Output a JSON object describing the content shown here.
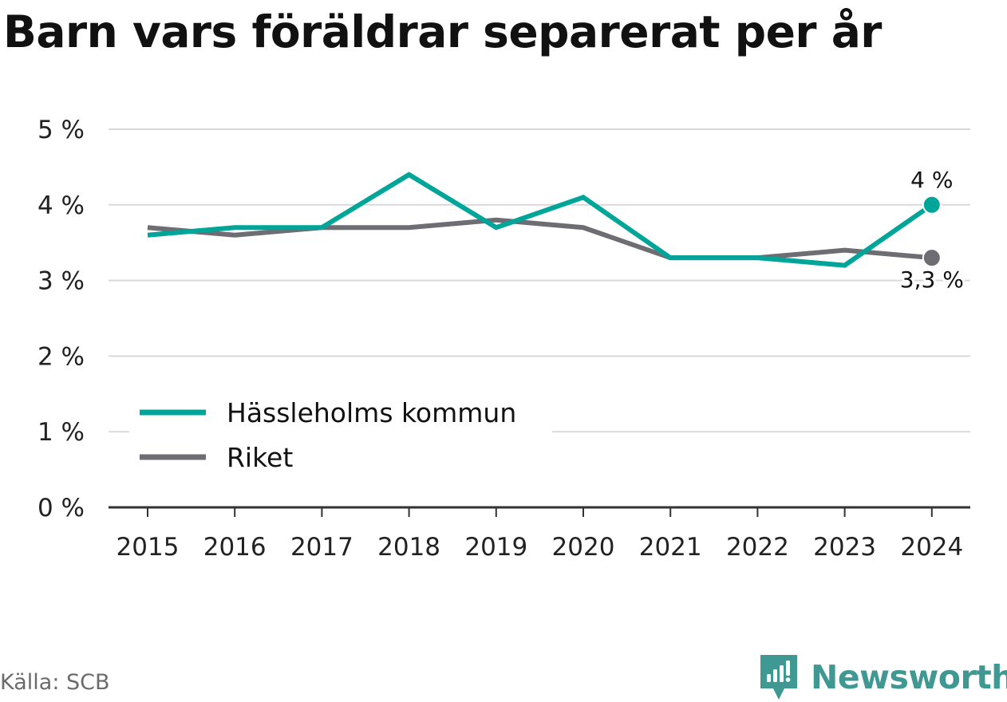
{
  "title": "Barn vars föräldrar separerat per år",
  "source": "Källa: SCB",
  "brand": {
    "name": "Newsworthy",
    "icon": "newsworthy-logo-icon",
    "color": "#3f9891"
  },
  "chart_data": {
    "type": "line",
    "title": "Barn vars föräldrar separerat per år",
    "xlabel": "",
    "ylabel": "",
    "categories": [
      "2015",
      "2016",
      "2017",
      "2018",
      "2019",
      "2020",
      "2021",
      "2022",
      "2023",
      "2024"
    ],
    "ylim": [
      0,
      5
    ],
    "yticks": [
      0,
      1,
      2,
      3,
      4,
      5
    ],
    "yticklabels": [
      "0 %",
      "1 %",
      "2 %",
      "3 %",
      "4 %",
      "5 %"
    ],
    "grid": true,
    "legend_position": "lower-left",
    "series": [
      {
        "name": "Riket",
        "color": "#6e6d73",
        "values": [
          3.7,
          3.6,
          3.7,
          3.7,
          3.8,
          3.7,
          3.3,
          3.3,
          3.4,
          3.3
        ],
        "end_label": "3,3 %"
      },
      {
        "name": "Hässleholms kommun",
        "color": "#00a59a",
        "values": [
          3.6,
          3.7,
          3.7,
          4.4,
          3.7,
          4.1,
          3.3,
          3.3,
          3.2,
          4.0
        ],
        "end_label": "4 %"
      }
    ],
    "legend_order": [
      "Hässleholms kommun",
      "Riket"
    ]
  }
}
